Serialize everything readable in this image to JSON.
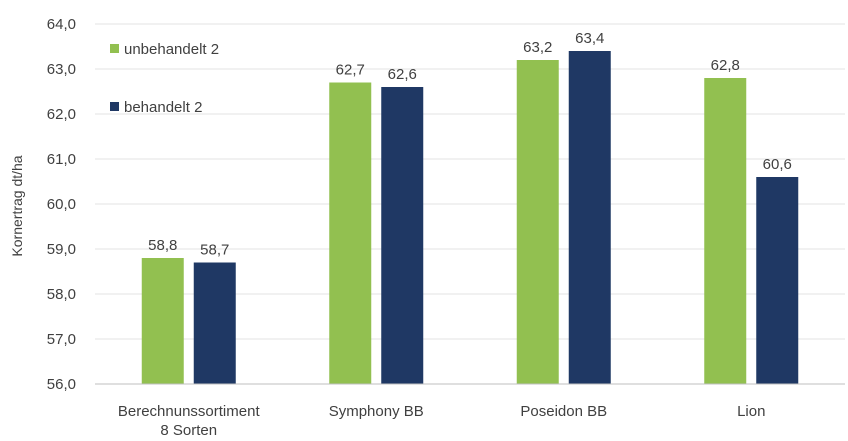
{
  "chart_data": {
    "type": "bar",
    "title": "",
    "xlabel": "",
    "ylabel": "Kornertrag dt/ha",
    "ylim": [
      56,
      64
    ],
    "ytick_step": 1,
    "ytick_labels": [
      "56,0",
      "57,0",
      "58,0",
      "59,0",
      "60,0",
      "61,0",
      "62,0",
      "63,0",
      "64,0"
    ],
    "grid": true,
    "legend_position": "top-left",
    "categories": [
      [
        "Berechnunssortiment",
        "8 Sorten"
      ],
      [
        "Symphony  BB"
      ],
      [
        "Poseidon  BB"
      ],
      [
        "Lion"
      ]
    ],
    "series": [
      {
        "name": "unbehandelt 2",
        "color": "#92c050",
        "values": [
          58.8,
          62.7,
          63.2,
          62.8
        ],
        "labels": [
          "58,8",
          "62,7",
          "63,2",
          "62,8"
        ]
      },
      {
        "name": "behandelt 2",
        "color": "#1f3864",
        "values": [
          58.7,
          62.6,
          63.4,
          60.6
        ],
        "labels": [
          "58,7",
          "62,6",
          "63,4",
          "60,6"
        ]
      }
    ]
  }
}
